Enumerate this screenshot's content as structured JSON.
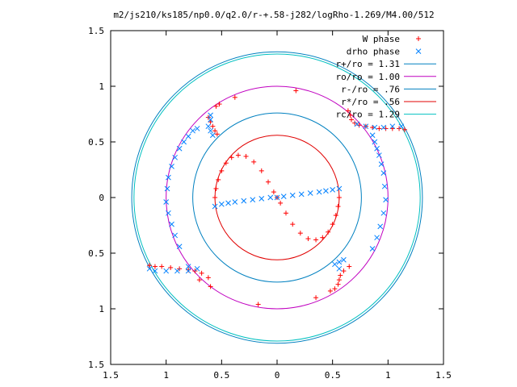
{
  "chart_data": {
    "type": "scatter",
    "title": "m2/js210/ks185/np0.0/q2.0/r-+.58-j282/logRho-1.269/M4.00/512",
    "xlabel": "",
    "ylabel": "",
    "xlim": [
      -1.5,
      1.5
    ],
    "ylim": [
      -1.5,
      1.5
    ],
    "x_tick_labels": [
      "1.5",
      "1",
      "0.5",
      "0",
      "0.5",
      "1",
      "1.5"
    ],
    "x_tick_values": [
      -1.5,
      -1,
      -0.5,
      0,
      0.5,
      1,
      1.5
    ],
    "y_tick_labels": [
      "1.5",
      "1",
      "0.5",
      "0",
      "0.5",
      "1",
      "1.5"
    ],
    "y_tick_values": [
      1.5,
      1,
      0.5,
      0,
      -0.5,
      -1,
      -1.5
    ],
    "grid": false,
    "legend_position": "top-right",
    "legend": [
      {
        "label": "W phase",
        "kind": "plus",
        "color": "#ff0000"
      },
      {
        "label": "drho phase",
        "kind": "x",
        "color": "#0080ff"
      },
      {
        "label": "r+/ro = 1.31",
        "kind": "line",
        "color": "#0080c0"
      },
      {
        "label": "ro/ro = 1.00",
        "kind": "line",
        "color": "#c000c0"
      },
      {
        "label": "r-/ro = .76",
        "kind": "line",
        "color": "#0080c0"
      },
      {
        "label": "r*/ro = .56",
        "kind": "line",
        "color": "#e00000"
      },
      {
        "label": "rc/ro = 1.29",
        "kind": "line",
        "color": "#00c0c0"
      }
    ],
    "circles": [
      {
        "name": "r+/ro = 1.31",
        "radius": 1.31,
        "color": "#0080c0"
      },
      {
        "name": "ro/ro = 1.00",
        "radius": 1.0,
        "color": "#c000c0"
      },
      {
        "name": "r-/ro = .76",
        "radius": 0.76,
        "color": "#0080c0"
      },
      {
        "name": "r*/ro = .56",
        "radius": 0.56,
        "color": "#e00000"
      },
      {
        "name": "rc/ro = 1.29",
        "radius": 1.29,
        "color": "#00c0c0"
      }
    ],
    "series": [
      {
        "name": "W phase",
        "color": "#ff0000",
        "marker": "plus",
        "points": [
          [
            -0.56,
            0.0
          ],
          [
            -0.55,
            0.08
          ],
          [
            -0.53,
            0.16
          ],
          [
            -0.5,
            0.24
          ],
          [
            -0.46,
            0.31
          ],
          [
            -0.41,
            0.36
          ],
          [
            -0.35,
            0.38
          ],
          [
            -0.28,
            0.37
          ],
          [
            -0.21,
            0.32
          ],
          [
            -0.14,
            0.24
          ],
          [
            -0.08,
            0.14
          ],
          [
            -0.03,
            0.05
          ],
          [
            0.0,
            0.0
          ],
          [
            0.03,
            -0.05
          ],
          [
            0.08,
            -0.14
          ],
          [
            0.14,
            -0.24
          ],
          [
            0.21,
            -0.32
          ],
          [
            0.28,
            -0.37
          ],
          [
            0.35,
            -0.38
          ],
          [
            0.41,
            -0.36
          ],
          [
            0.46,
            -0.31
          ],
          [
            0.5,
            -0.24
          ],
          [
            0.53,
            -0.16
          ],
          [
            0.55,
            -0.08
          ],
          [
            0.56,
            0.0
          ],
          [
            -0.62,
            0.72
          ],
          [
            -0.6,
            0.68
          ],
          [
            -0.58,
            0.64
          ],
          [
            -0.56,
            0.6
          ],
          [
            -0.54,
            0.57
          ],
          [
            -0.55,
            0.82
          ],
          [
            -0.52,
            0.84
          ],
          [
            -0.38,
            0.9
          ],
          [
            0.17,
            0.96
          ],
          [
            0.64,
            0.78
          ],
          [
            0.66,
            0.74
          ],
          [
            0.67,
            0.7
          ],
          [
            0.7,
            0.67
          ],
          [
            0.74,
            0.65
          ],
          [
            0.8,
            0.64
          ],
          [
            0.86,
            0.63
          ],
          [
            0.92,
            0.62
          ],
          [
            0.98,
            0.62
          ],
          [
            1.04,
            0.62
          ],
          [
            1.1,
            0.62
          ],
          [
            1.15,
            0.61
          ],
          [
            0.65,
            -0.62
          ],
          [
            0.6,
            -0.66
          ],
          [
            0.57,
            -0.7
          ],
          [
            0.56,
            -0.74
          ],
          [
            0.55,
            -0.78
          ],
          [
            0.52,
            -0.82
          ],
          [
            0.48,
            -0.84
          ],
          [
            0.35,
            -0.9
          ],
          [
            -0.17,
            -0.96
          ],
          [
            -0.62,
            -0.72
          ],
          [
            -0.68,
            -0.68
          ],
          [
            -0.74,
            -0.66
          ],
          [
            -0.8,
            -0.65
          ],
          [
            -0.88,
            -0.64
          ],
          [
            -0.96,
            -0.63
          ],
          [
            -1.04,
            -0.62
          ],
          [
            -1.1,
            -0.62
          ],
          [
            -1.15,
            -0.61
          ],
          [
            -0.7,
            -0.74
          ],
          [
            -0.6,
            -0.8
          ]
        ]
      },
      {
        "name": "drho phase",
        "color": "#0080ff",
        "marker": "x",
        "points": [
          [
            -0.56,
            -0.08
          ],
          [
            -0.5,
            -0.06
          ],
          [
            -0.44,
            -0.05
          ],
          [
            -0.38,
            -0.04
          ],
          [
            -0.3,
            -0.03
          ],
          [
            -0.22,
            -0.02
          ],
          [
            -0.14,
            -0.01
          ],
          [
            -0.06,
            0.0
          ],
          [
            0.0,
            0.0
          ],
          [
            0.06,
            0.01
          ],
          [
            0.14,
            0.02
          ],
          [
            0.22,
            0.03
          ],
          [
            0.3,
            0.04
          ],
          [
            0.38,
            0.05
          ],
          [
            0.44,
            0.06
          ],
          [
            0.5,
            0.07
          ],
          [
            0.56,
            0.08
          ],
          [
            -0.58,
            0.56
          ],
          [
            -0.6,
            0.6
          ],
          [
            -0.62,
            0.64
          ],
          [
            -0.6,
            0.7
          ],
          [
            -0.6,
            0.74
          ],
          [
            -0.72,
            0.62
          ],
          [
            -0.76,
            0.6
          ],
          [
            -0.8,
            0.55
          ],
          [
            -0.84,
            0.5
          ],
          [
            -0.88,
            0.44
          ],
          [
            -0.92,
            0.36
          ],
          [
            -0.95,
            0.28
          ],
          [
            -0.98,
            0.18
          ],
          [
            -0.99,
            0.08
          ],
          [
            -1.0,
            -0.04
          ],
          [
            -0.98,
            -0.14
          ],
          [
            -0.95,
            -0.24
          ],
          [
            -0.92,
            -0.34
          ],
          [
            -0.88,
            -0.44
          ],
          [
            0.86,
            0.56
          ],
          [
            0.88,
            0.5
          ],
          [
            0.9,
            0.44
          ],
          [
            0.92,
            0.38
          ],
          [
            0.94,
            0.3
          ],
          [
            0.96,
            0.22
          ],
          [
            0.97,
            0.1
          ],
          [
            0.98,
            -0.02
          ],
          [
            0.96,
            -0.14
          ],
          [
            0.93,
            -0.26
          ],
          [
            0.9,
            -0.36
          ],
          [
            0.86,
            -0.46
          ],
          [
            0.72,
            0.66
          ],
          [
            0.8,
            0.64
          ],
          [
            0.88,
            0.63
          ],
          [
            0.96,
            0.63
          ],
          [
            1.04,
            0.64
          ],
          [
            1.12,
            0.64
          ],
          [
            0.6,
            -0.56
          ],
          [
            0.56,
            -0.58
          ],
          [
            0.52,
            -0.6
          ],
          [
            0.56,
            -0.64
          ],
          [
            -0.8,
            -0.62
          ],
          [
            -0.72,
            -0.64
          ],
          [
            -0.8,
            -0.66
          ],
          [
            -0.9,
            -0.66
          ],
          [
            -1.0,
            -0.66
          ],
          [
            -1.1,
            -0.66
          ],
          [
            -1.15,
            -0.64
          ]
        ]
      }
    ]
  }
}
